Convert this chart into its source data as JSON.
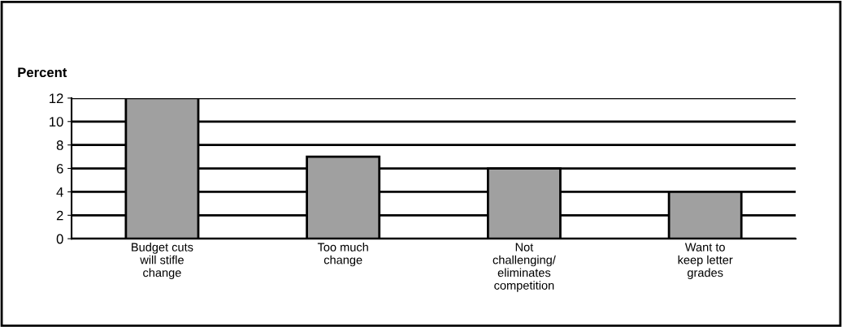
{
  "chart_data": {
    "type": "bar",
    "ylabel": "Percent",
    "categories": [
      "Budget cuts\nwill stifle\nchange",
      "Too much\nchange",
      "Not\nchallenging/\neliminates\ncompetition",
      "Want to\nkeep letter\ngrades"
    ],
    "values": [
      12,
      7,
      6,
      4
    ],
    "color": "#a0a0a0",
    "ylim": [
      0,
      12
    ],
    "yticks": [
      0,
      2,
      4,
      6,
      8,
      10,
      12
    ],
    "grid": "y",
    "legend": false
  }
}
